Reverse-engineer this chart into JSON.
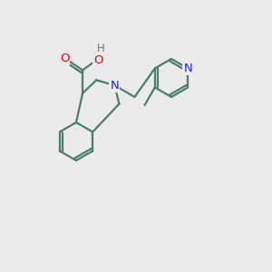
{
  "background_color": "#ebebeb",
  "bond_color": "#4a7c6f",
  "bond_width": 1.6,
  "atom_colors": {
    "N": "#2020ee",
    "O": "#ee0000",
    "H": "#707070",
    "C": "#4a7c6f"
  },
  "font_size_atom": 9.5,
  "fig_size": [
    3.0,
    3.0
  ],
  "dpi": 100
}
